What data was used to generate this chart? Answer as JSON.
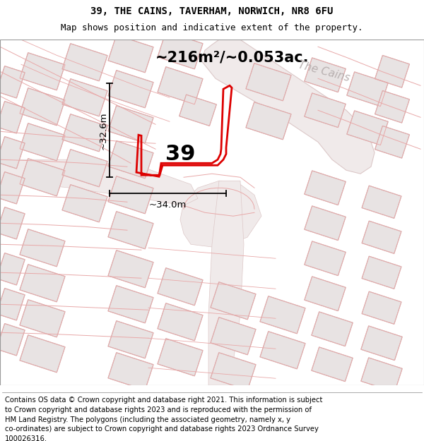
{
  "title_line1": "39, THE CAINS, TAVERHAM, NORWICH, NR8 6FU",
  "title_line2": "Map shows position and indicative extent of the property.",
  "area_text": "~216m²/~0.053ac.",
  "street_label": "The Cains",
  "property_number": "39",
  "dim_vertical": "~32.6m",
  "dim_horizontal": "~34.0m",
  "footer_text": "Contains OS data © Crown copyright and database right 2021. This information is subject\nto Crown copyright and database rights 2023 and is reproduced with the permission of\nHM Land Registry. The polygons (including the associated geometry, namely x, y\nco-ordinates) are subject to Crown copyright and database rights 2023 Ordnance Survey\n100026316.",
  "map_bg": "#f5f0f0",
  "building_fill": "#e8e3e3",
  "building_edge_dark": "#c8bcbc",
  "building_edge_pink": "#e8a8a8",
  "road_fill": "#f0e8e8",
  "road_edge": "#e0c0c0",
  "property_red": "#dd0000",
  "street_color": "#b8b0b0",
  "title_fontsize": 10,
  "subtitle_fontsize": 9,
  "area_fontsize": 15,
  "street_fontsize": 11,
  "number_fontsize": 22,
  "dim_fontsize": 9.5,
  "footer_fontsize": 7.2
}
